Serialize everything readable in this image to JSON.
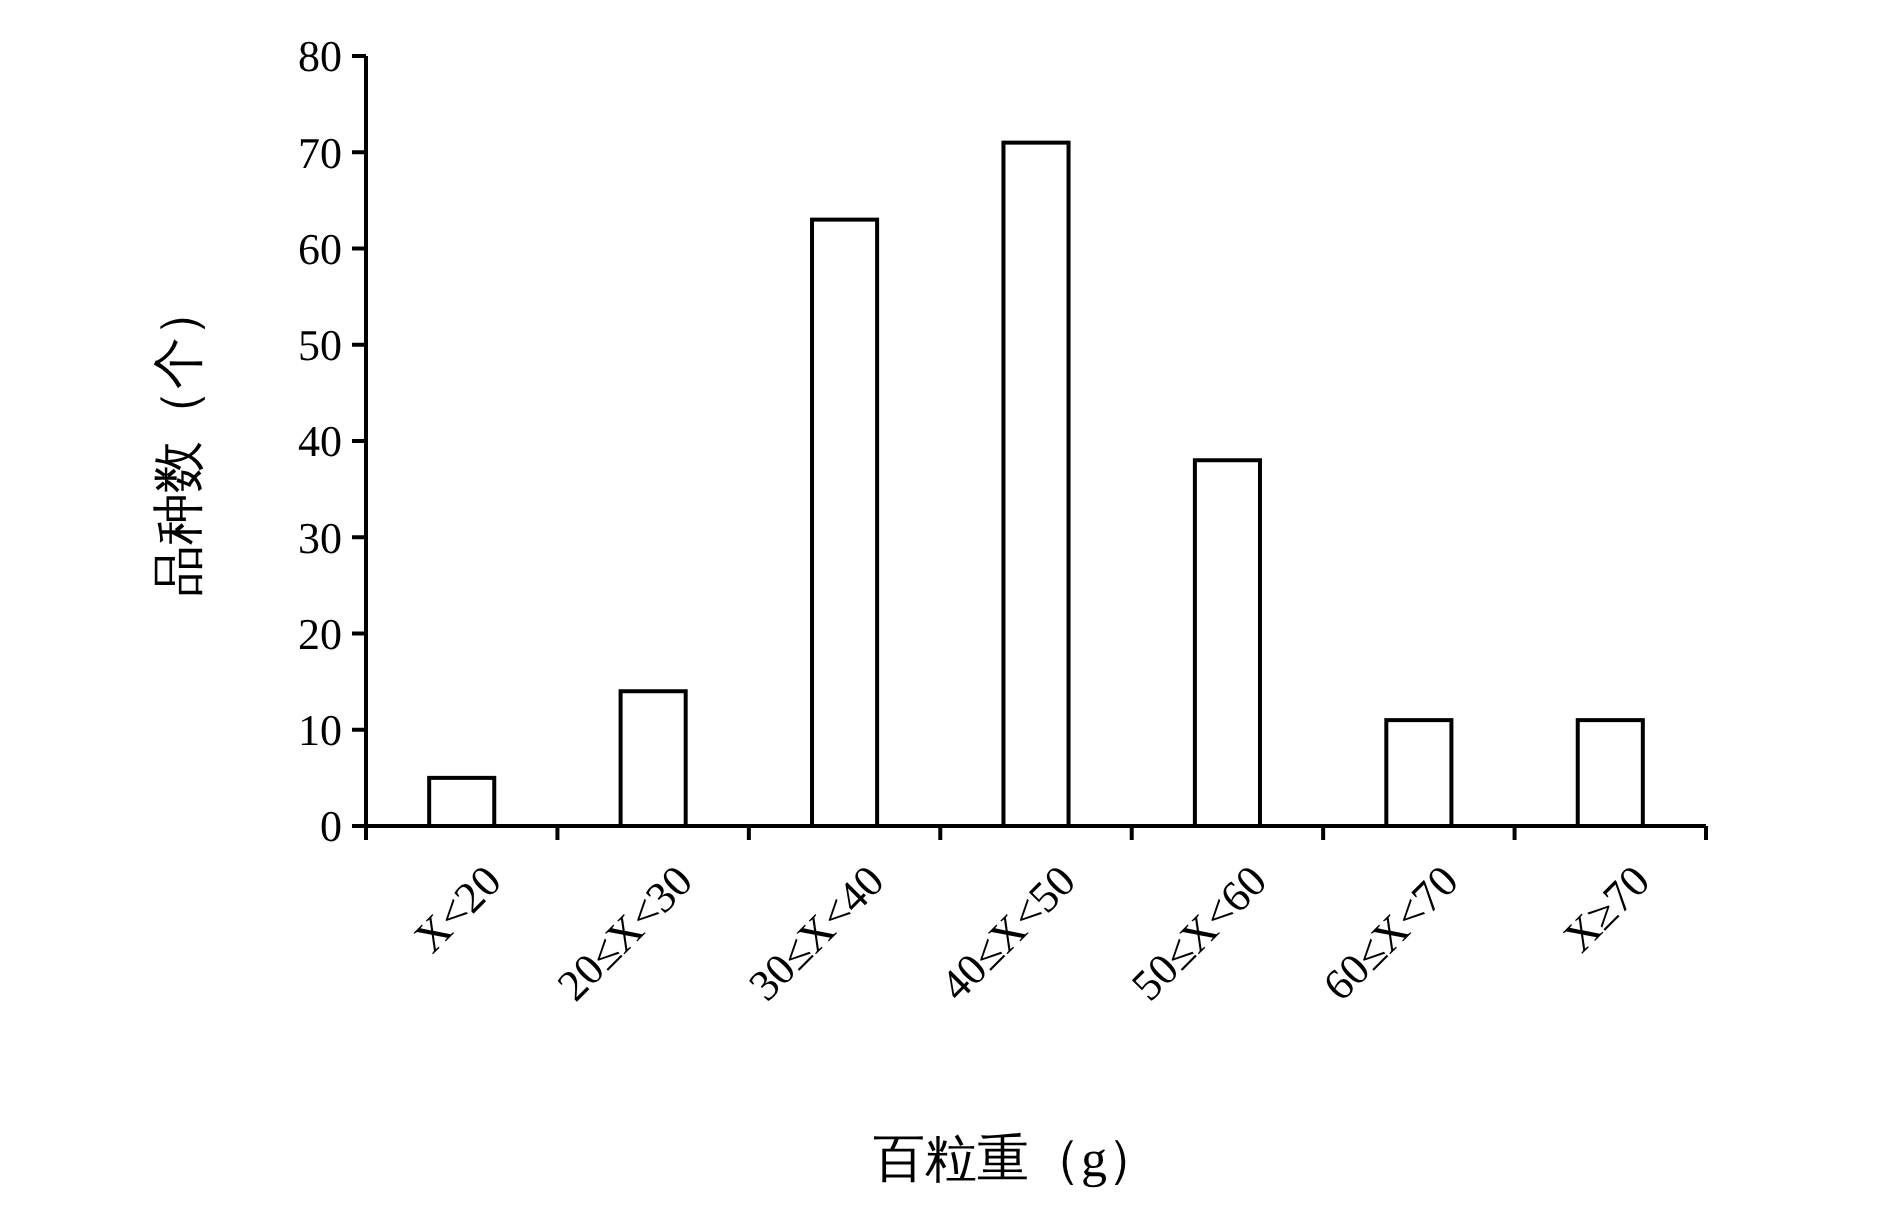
{
  "chart_data": {
    "type": "bar",
    "xlabel": "百粒重（g）",
    "ylabel": "品种数（个）",
    "categories": [
      "X<20",
      "20≤X<30",
      "30≤X<40",
      "40≤X<50",
      "50≤X<60",
      "60≤X<70",
      "X≥70"
    ],
    "values": [
      5,
      14,
      63,
      71,
      38,
      11,
      11
    ],
    "color": "#ffffff",
    "ylim": [
      0,
      80
    ],
    "yticks": [
      0,
      10,
      20,
      30,
      40,
      50,
      60,
      70,
      80
    ],
    "grid": false
  }
}
